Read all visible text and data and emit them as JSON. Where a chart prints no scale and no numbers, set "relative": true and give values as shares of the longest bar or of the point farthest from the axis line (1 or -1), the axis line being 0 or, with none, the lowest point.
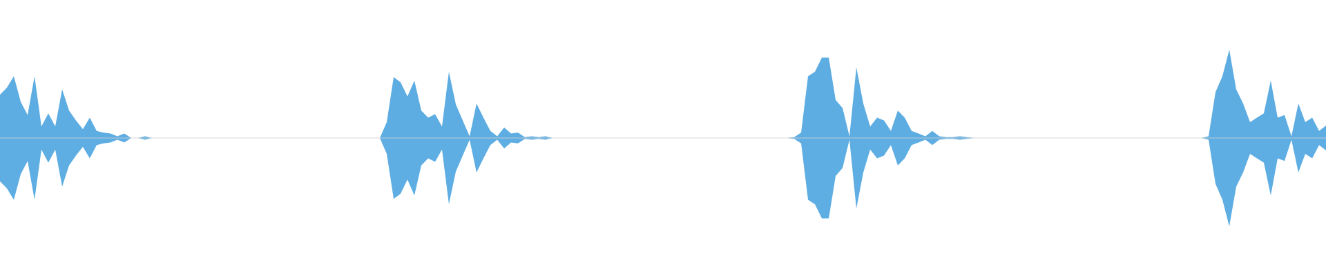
{
  "chart_data": {
    "type": "area",
    "relative": true,
    "categories": [
      null,
      null,
      null,
      null,
      null,
      null,
      null,
      null,
      null,
      null,
      null,
      null,
      null,
      null,
      null,
      null,
      null,
      null,
      null,
      null,
      null,
      null,
      null,
      null,
      null,
      null,
      null,
      null,
      null,
      null,
      null,
      null,
      null,
      null,
      null,
      null,
      null,
      null,
      null,
      null,
      null,
      null,
      null,
      null,
      null,
      null,
      null,
      null,
      null,
      null,
      null,
      null,
      null,
      null,
      null,
      null,
      null,
      null,
      null,
      null,
      null,
      null,
      null,
      null,
      null,
      null,
      null,
      null,
      null,
      null,
      null,
      null,
      null,
      null,
      null,
      null,
      null,
      null,
      null,
      null,
      null,
      null,
      null,
      null,
      null,
      null,
      null,
      null,
      null,
      null,
      null,
      null,
      null,
      null,
      null,
      null,
      null,
      null,
      null,
      null,
      null,
      null,
      null,
      null,
      null,
      null,
      null,
      null,
      null,
      null,
      null,
      null,
      null,
      null,
      null,
      null,
      null,
      null,
      null,
      null,
      null,
      null,
      null,
      null,
      null,
      null,
      null,
      null,
      null,
      null,
      null,
      null,
      null,
      null,
      null,
      null,
      null,
      null,
      null,
      null,
      null,
      null,
      null,
      null,
      null,
      null,
      null,
      null,
      null,
      null,
      null,
      null,
      null,
      null,
      null,
      null,
      null,
      null,
      null,
      null,
      null,
      null,
      null,
      null,
      null,
      null,
      null,
      null,
      null,
      null,
      null,
      null,
      null,
      null,
      null,
      null,
      null,
      null,
      null,
      null,
      null,
      null,
      null,
      null,
      null,
      null,
      null,
      null,
      null,
      null,
      null,
      null,
      null
    ],
    "series": [
      {
        "color": "#5dade2",
        "values": [
          0.49,
          0.57,
          0.7,
          0.41,
          0.26,
          0.7,
          0.13,
          0.28,
          0.13,
          0.55,
          0.31,
          0.2,
          0.1,
          0.23,
          0.08,
          0.06,
          0.05,
          0.02,
          0.05,
          0,
          0,
          0.02,
          0,
          0,
          0,
          0,
          0,
          0,
          0,
          0,
          0,
          0,
          0,
          0,
          0,
          0,
          0,
          0,
          0,
          0,
          0,
          0,
          0,
          0,
          0,
          0,
          0,
          0,
          0,
          0,
          0,
          0,
          0,
          0,
          0,
          0,
          0.18,
          0.69,
          0.63,
          0.47,
          0.65,
          0.31,
          0.23,
          0.27,
          0.13,
          0.75,
          0.38,
          0.2,
          0.02,
          0.39,
          0.23,
          0.08,
          0.02,
          0.12,
          0.05,
          0.06,
          0.01,
          0.02,
          0.01,
          0.02,
          0,
          0,
          0,
          0,
          0,
          0,
          0,
          0,
          0,
          0,
          0,
          0,
          0,
          0,
          0,
          0,
          0,
          0,
          0,
          0,
          0,
          0,
          0,
          0,
          0,
          0,
          0,
          0,
          0,
          0,
          0,
          0,
          0,
          0,
          0,
          0.01,
          0.06,
          0.7,
          0.75,
          0.91,
          0.91,
          0.43,
          0.34,
          0.02,
          0.8,
          0.39,
          0.13,
          0.23,
          0.2,
          0.08,
          0.31,
          0.23,
          0.08,
          0.05,
          0.02,
          0.08,
          0.02,
          0.01,
          0.01,
          0.02,
          0.01,
          0,
          0,
          0,
          0,
          0,
          0,
          0,
          0,
          0,
          0,
          0,
          0,
          0,
          0,
          0,
          0,
          0,
          0,
          0,
          0,
          0,
          0,
          0,
          0,
          0,
          0,
          0,
          0,
          0,
          0,
          0,
          0,
          0,
          0,
          0.02,
          0.52,
          0.7,
          1,
          0.55,
          0.39,
          0.18,
          0.23,
          0.28,
          0.65,
          0.23,
          0.26,
          0.02,
          0.39,
          0.18,
          0.23,
          0.08,
          0.14
        ]
      },
      {
        "color": "#5eaee3",
        "values": [
          -0.49,
          -0.57,
          -0.7,
          -0.41,
          -0.26,
          -0.7,
          -0.13,
          -0.28,
          -0.13,
          -0.55,
          -0.31,
          -0.2,
          -0.1,
          -0.23,
          -0.08,
          -0.06,
          -0.05,
          -0.02,
          -0.05,
          0,
          0,
          -0.02,
          0,
          0,
          0,
          0,
          0,
          0,
          0,
          0,
          0,
          0,
          0,
          0,
          0,
          0,
          0,
          0,
          0,
          0,
          0,
          0,
          0,
          0,
          0,
          0,
          0,
          0,
          0,
          0,
          0,
          0,
          0,
          0,
          0,
          0,
          -0.18,
          -0.69,
          -0.63,
          -0.47,
          -0.65,
          -0.31,
          -0.23,
          -0.27,
          -0.13,
          -0.75,
          -0.38,
          -0.2,
          -0.02,
          -0.39,
          -0.23,
          -0.08,
          -0.02,
          -0.12,
          -0.05,
          -0.06,
          -0.01,
          -0.02,
          -0.01,
          -0.02,
          0,
          0,
          0,
          0,
          0,
          0,
          0,
          0,
          0,
          0,
          0,
          0,
          0,
          0,
          0,
          0,
          0,
          0,
          0,
          0,
          0,
          0,
          0,
          0,
          0,
          0,
          0,
          0,
          0,
          0,
          0,
          0,
          0,
          0,
          0,
          -0.01,
          -0.06,
          -0.7,
          -0.75,
          -0.91,
          -0.91,
          -0.43,
          -0.34,
          -0.02,
          -0.8,
          -0.39,
          -0.13,
          -0.23,
          -0.2,
          -0.08,
          -0.31,
          -0.23,
          -0.08,
          -0.05,
          -0.02,
          -0.08,
          -0.02,
          -0.01,
          -0.01,
          -0.02,
          -0.01,
          0,
          0,
          0,
          0,
          0,
          0,
          0,
          0,
          0,
          0,
          0,
          0,
          0,
          0,
          0,
          0,
          0,
          0,
          0,
          0,
          0,
          0,
          0,
          0,
          0,
          0,
          0,
          0,
          0,
          0,
          0,
          0,
          0,
          0,
          -0.02,
          -0.52,
          -0.7,
          -1,
          -0.55,
          -0.39,
          -0.18,
          -0.23,
          -0.28,
          -0.65,
          -0.23,
          -0.26,
          -0.02,
          -0.39,
          -0.18,
          -0.23,
          -0.08,
          -0.14
        ]
      }
    ]
  }
}
